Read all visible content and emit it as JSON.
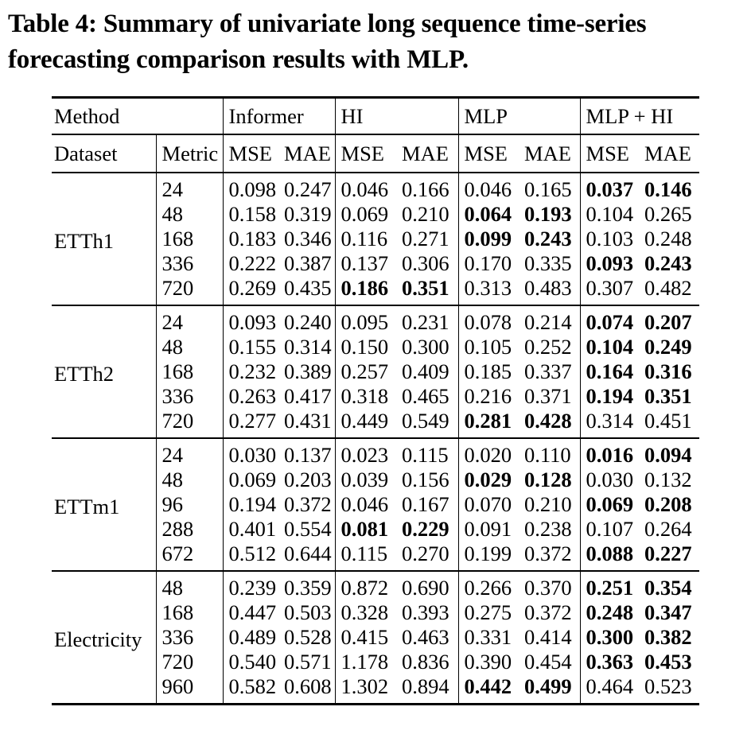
{
  "caption": {
    "line1": "Table 4: Summary of univariate long sequence time-series",
    "line2": "forecasting comparison results with MLP."
  },
  "colors": {
    "text": "#000000",
    "background": "#ffffff",
    "rule": "#000000"
  },
  "table": {
    "header": {
      "method_label": "Method",
      "methods": [
        "Informer",
        "HI",
        "MLP",
        "MLP + HI"
      ],
      "dataset_label": "Dataset",
      "metric_label": "Metric",
      "submetrics": [
        "MSE",
        "MAE"
      ]
    },
    "groups": [
      {
        "dataset": "ETTh1",
        "rows": [
          {
            "metric": "24",
            "values": [
              "0.098",
              "0.247",
              "0.046",
              "0.166",
              "0.046",
              "0.165",
              "0.037",
              "0.146"
            ],
            "bold": [
              0,
              0,
              0,
              0,
              0,
              0,
              1,
              1
            ]
          },
          {
            "metric": "48",
            "values": [
              "0.158",
              "0.319",
              "0.069",
              "0.210",
              "0.064",
              "0.193",
              "0.104",
              "0.265"
            ],
            "bold": [
              0,
              0,
              0,
              0,
              1,
              1,
              0,
              0
            ]
          },
          {
            "metric": "168",
            "values": [
              "0.183",
              "0.346",
              "0.116",
              "0.271",
              "0.099",
              "0.243",
              "0.103",
              "0.248"
            ],
            "bold": [
              0,
              0,
              0,
              0,
              1,
              1,
              0,
              0
            ]
          },
          {
            "metric": "336",
            "values": [
              "0.222",
              "0.387",
              "0.137",
              "0.306",
              "0.170",
              "0.335",
              "0.093",
              "0.243"
            ],
            "bold": [
              0,
              0,
              0,
              0,
              0,
              0,
              1,
              1
            ]
          },
          {
            "metric": "720",
            "values": [
              "0.269",
              "0.435",
              "0.186",
              "0.351",
              "0.313",
              "0.483",
              "0.307",
              "0.482"
            ],
            "bold": [
              0,
              0,
              1,
              1,
              0,
              0,
              0,
              0
            ]
          }
        ]
      },
      {
        "dataset": "ETTh2",
        "rows": [
          {
            "metric": "24",
            "values": [
              "0.093",
              "0.240",
              "0.095",
              "0.231",
              "0.078",
              "0.214",
              "0.074",
              "0.207"
            ],
            "bold": [
              0,
              0,
              0,
              0,
              0,
              0,
              1,
              1
            ]
          },
          {
            "metric": "48",
            "values": [
              "0.155",
              "0.314",
              "0.150",
              "0.300",
              "0.105",
              "0.252",
              "0.104",
              "0.249"
            ],
            "bold": [
              0,
              0,
              0,
              0,
              0,
              0,
              1,
              1
            ]
          },
          {
            "metric": "168",
            "values": [
              "0.232",
              "0.389",
              "0.257",
              "0.409",
              "0.185",
              "0.337",
              "0.164",
              "0.316"
            ],
            "bold": [
              0,
              0,
              0,
              0,
              0,
              0,
              1,
              1
            ]
          },
          {
            "metric": "336",
            "values": [
              "0.263",
              "0.417",
              "0.318",
              "0.465",
              "0.216",
              "0.371",
              "0.194",
              "0.351"
            ],
            "bold": [
              0,
              0,
              0,
              0,
              0,
              0,
              1,
              1
            ]
          },
          {
            "metric": "720",
            "values": [
              "0.277",
              "0.431",
              "0.449",
              "0.549",
              "0.281",
              "0.428",
              "0.314",
              "0.451"
            ],
            "bold": [
              0,
              0,
              0,
              0,
              1,
              1,
              0,
              0
            ]
          }
        ]
      },
      {
        "dataset": "ETTm1",
        "rows": [
          {
            "metric": "24",
            "values": [
              "0.030",
              "0.137",
              "0.023",
              "0.115",
              "0.020",
              "0.110",
              "0.016",
              "0.094"
            ],
            "bold": [
              0,
              0,
              0,
              0,
              0,
              0,
              1,
              1
            ]
          },
          {
            "metric": "48",
            "values": [
              "0.069",
              "0.203",
              "0.039",
              "0.156",
              "0.029",
              "0.128",
              "0.030",
              "0.132"
            ],
            "bold": [
              0,
              0,
              0,
              0,
              1,
              1,
              0,
              0
            ]
          },
          {
            "metric": "96",
            "values": [
              "0.194",
              "0.372",
              "0.046",
              "0.167",
              "0.070",
              "0.210",
              "0.069",
              "0.208"
            ],
            "bold": [
              0,
              0,
              0,
              0,
              0,
              0,
              1,
              1
            ]
          },
          {
            "metric": "288",
            "values": [
              "0.401",
              "0.554",
              "0.081",
              "0.229",
              "0.091",
              "0.238",
              "0.107",
              "0.264"
            ],
            "bold": [
              0,
              0,
              1,
              1,
              0,
              0,
              0,
              0
            ]
          },
          {
            "metric": "672",
            "values": [
              "0.512",
              "0.644",
              "0.115",
              "0.270",
              "0.199",
              "0.372",
              "0.088",
              "0.227"
            ],
            "bold": [
              0,
              0,
              0,
              0,
              0,
              0,
              1,
              1
            ]
          }
        ]
      },
      {
        "dataset": "Electricity",
        "rows": [
          {
            "metric": "48",
            "values": [
              "0.239",
              "0.359",
              "0.872",
              "0.690",
              "0.266",
              "0.370",
              "0.251",
              "0.354"
            ],
            "bold": [
              0,
              0,
              0,
              0,
              0,
              0,
              1,
              1
            ]
          },
          {
            "metric": "168",
            "values": [
              "0.447",
              "0.503",
              "0.328",
              "0.393",
              "0.275",
              "0.372",
              "0.248",
              "0.347"
            ],
            "bold": [
              0,
              0,
              0,
              0,
              0,
              0,
              1,
              1
            ]
          },
          {
            "metric": "336",
            "values": [
              "0.489",
              "0.528",
              "0.415",
              "0.463",
              "0.331",
              "0.414",
              "0.300",
              "0.382"
            ],
            "bold": [
              0,
              0,
              0,
              0,
              0,
              0,
              1,
              1
            ]
          },
          {
            "metric": "720",
            "values": [
              "0.540",
              "0.571",
              "1.178",
              "0.836",
              "0.390",
              "0.454",
              "0.363",
              "0.453"
            ],
            "bold": [
              0,
              0,
              0,
              0,
              0,
              0,
              1,
              1
            ]
          },
          {
            "metric": "960",
            "values": [
              "0.582",
              "0.608",
              "1.302",
              "0.894",
              "0.442",
              "0.499",
              "0.464",
              "0.523"
            ],
            "bold": [
              0,
              0,
              0,
              0,
              1,
              1,
              0,
              0
            ]
          }
        ]
      }
    ]
  }
}
